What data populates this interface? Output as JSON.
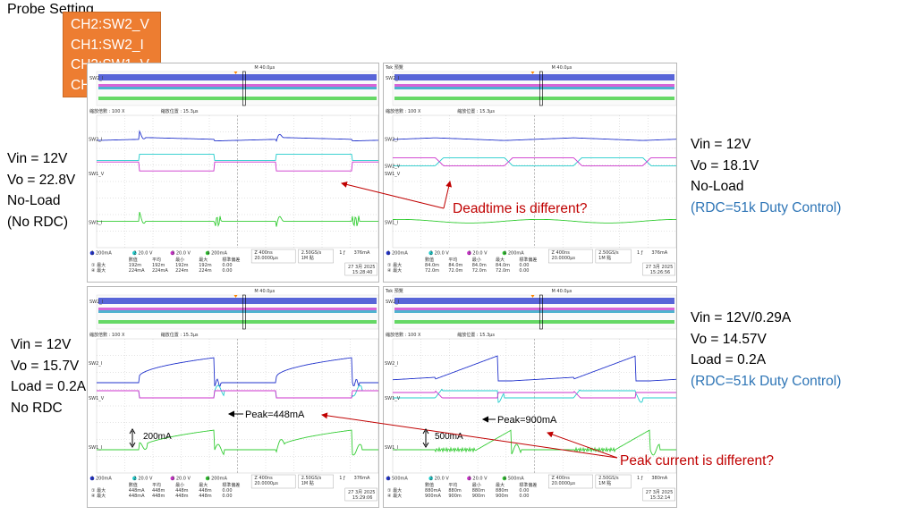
{
  "probe": {
    "title": "Probe Setting",
    "channels": [
      "CH2:SW2_V",
      "CH1:SW2_I",
      "CH3:SW1_V",
      "CH4:SW1_I"
    ]
  },
  "conditions": {
    "top_left": [
      "Vin = 12V",
      "Vo = 22.8V",
      "No-Load",
      "(No RDC)"
    ],
    "top_right": [
      "Vin = 12V",
      "Vo = 18.1V",
      "No-Load",
      "(RDC=51k Duty Control)"
    ],
    "bottom_left": [
      "Vin = 12V",
      "Vo = 15.7V",
      "Load = 0.2A",
      "No RDC"
    ],
    "bottom_right": [
      "Vin = 12V/0.29A",
      "Vo = 14.57V",
      "Load = 0.2A",
      "(RDC=51k Duty Control)"
    ]
  },
  "annotations": {
    "deadtime": "Deadtime is different?",
    "peak_current": "Peak current is different?",
    "peak_left": "Peak=448mA",
    "peak_right": "Peak=900mA",
    "offset_left": "200mA",
    "offset_right": "500mA"
  },
  "scopes": [
    {
      "brand": "",
      "timebase": "M 40.0µs",
      "zoom_factor": "縮放倍數 : 100 X",
      "zoom_pos": "縮放位置 : 15.3µs",
      "ch1": "200mA",
      "ch2": "20.0 V",
      "ch3": "20.0 V",
      "ch4": "200mA",
      "zoom_time": "Z 400ns",
      "trigger": "20.0000µs",
      "sample": "2.50GS/s",
      "points": "1M 點",
      "trig_level": "376mA",
      "date": "27 3月 2025",
      "time": "15:28:40",
      "stats_header": [
        "數值",
        "平均",
        "最小",
        "最大",
        "標準偏差"
      ],
      "stats_row1": [
        "192m",
        "192m",
        "192m",
        "192m",
        "0.00"
      ],
      "stats_row2": [
        "224mA",
        "224mA",
        "224m",
        "224m",
        "0.00"
      ]
    },
    {
      "brand": "Tek 預覽",
      "timebase": "M 40.0µs",
      "zoom_factor": "縮放倍數 : 100 X",
      "zoom_pos": "縮放位置 : 15.3µs",
      "ch1": "200mA",
      "ch2": "20.0 V",
      "ch3": "20.0 V",
      "ch4": "200mA",
      "zoom_time": "Z 400ns",
      "trigger": "20.0000µs",
      "sample": "2.50GS/s",
      "points": "1M 點",
      "trig_level": "376mA",
      "date": "27 3月 2025",
      "time": "15:26:56",
      "stats_header": [
        "數值",
        "平均",
        "最小",
        "最大",
        "標準偏差"
      ],
      "stats_row1": [
        "84.0m",
        "84.0m",
        "84.0m",
        "84.0m",
        "0.00"
      ],
      "stats_row2": [
        "72.0m",
        "72.0m",
        "72.0m",
        "72.0m",
        "0.00"
      ]
    },
    {
      "brand": "",
      "timebase": "M 40.0µs",
      "zoom_factor": "縮放倍數 : 100 X",
      "zoom_pos": "縮放位置 : 15.3µs",
      "ch1": "200mA",
      "ch2": "20.0 V",
      "ch3": "20.0 V",
      "ch4": "200mA",
      "zoom_time": "Z 400ns",
      "trigger": "20.0000µs",
      "sample": "2.50GS/s",
      "points": "1M 點",
      "trig_level": "376mA",
      "date": "27 3月 2025",
      "time": "15:29:06",
      "stats_header": [
        "數值",
        "平均",
        "最小",
        "最大",
        "標準偏差"
      ],
      "stats_row1": [
        "448mA",
        "448m",
        "448m",
        "448m",
        "0.00"
      ],
      "stats_row2": [
        "448mA",
        "448m",
        "448m",
        "448m",
        "0.00"
      ]
    },
    {
      "brand": "Tek 預覽",
      "timebase": "M 40.0µs",
      "zoom_factor": "縮放倍數 : 100 X",
      "zoom_pos": "縮放位置 : 15.3µs",
      "ch1": "500mA",
      "ch2": "20.0 V",
      "ch3": "20.0 V",
      "ch4": "500mA",
      "zoom_time": "Z 400ns",
      "trigger": "20.0000µs",
      "sample": "2.50GS/s",
      "points": "1M 點",
      "trig_level": "380mA",
      "date": "27 3月 2025",
      "time": "15:32:14",
      "stats_header": [
        "數值",
        "平均",
        "最小",
        "最大",
        "標準偏差"
      ],
      "stats_row1": [
        "880mA",
        "880m",
        "880m",
        "880m",
        "0.00"
      ],
      "stats_row2": [
        "900mA",
        "900m",
        "900m",
        "900m",
        "0.00"
      ]
    }
  ],
  "trace_labels": [
    "SW2_I",
    "SW2_V",
    "SW1_V",
    "SW1_I"
  ],
  "colors": {
    "ch_blue": "#2233cc",
    "ch_cyan": "#22cccc",
    "ch_magenta": "#cc33cc",
    "ch_green": "#33cc33",
    "accent_orange": "#ED7D31",
    "note_red": "#C00000",
    "note_blue": "#2E75B6"
  }
}
